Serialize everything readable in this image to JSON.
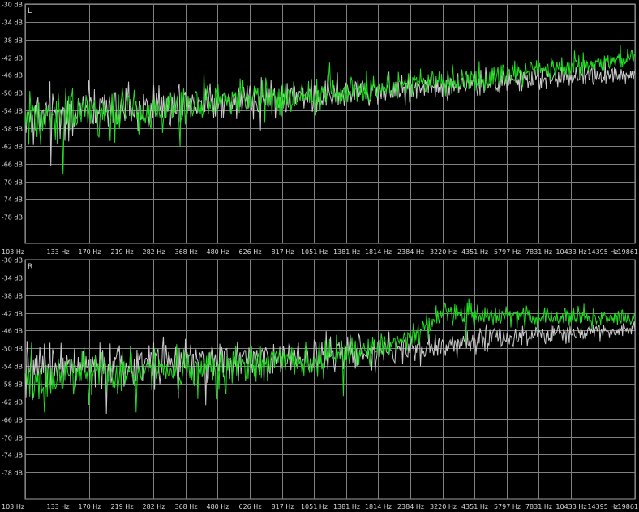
{
  "chart_data": [
    {
      "type": "line",
      "channel_label": "L",
      "y_ticks": [
        "-30 dB",
        "-34 dB",
        "-38 dB",
        "-42 dB",
        "-46 dB",
        "-50 dB",
        "-54 dB",
        "-58 dB",
        "-62 dB",
        "-66 dB",
        "-70 dB",
        "-74 dB",
        "-78 dB"
      ],
      "x_ticks": [
        "103 Hz",
        "133 Hz",
        "170 Hz",
        "219 Hz",
        "282 Hz",
        "368 Hz",
        "480 Hz",
        "626 Hz",
        "817 Hz",
        "1051 Hz",
        "1381 Hz",
        "1814 Hz",
        "2384 Hz",
        "3220 Hz",
        "4351 Hz",
        "5797 Hz",
        "7831 Hz",
        "10433 Hz",
        "14395 Hz",
        "19861"
      ],
      "x_scale": "log",
      "xlim": [
        103,
        19861
      ],
      "ylim": [
        -80,
        -30
      ],
      "grid": true,
      "series": [
        {
          "color": "#c8c8c8",
          "anchors_hz": [
            103,
            170,
            282,
            480,
            817,
            1381,
            2384,
            4351,
            7831,
            14395,
            19861
          ],
          "anchors_db": [
            -55,
            -54,
            -53,
            -52,
            -51,
            -50,
            -49,
            -48,
            -47,
            -46,
            -46
          ]
        },
        {
          "color": "#22dd22",
          "anchors_hz": [
            103,
            170,
            282,
            480,
            817,
            1381,
            2384,
            4351,
            7831,
            14395,
            19861
          ],
          "anchors_db": [
            -56,
            -55,
            -54,
            -52,
            -51,
            -50,
            -48,
            -47,
            -45,
            -43,
            -42
          ]
        }
      ]
    },
    {
      "type": "line",
      "channel_label": "R",
      "y_ticks": [
        "-30 dB",
        "-34 dB",
        "-38 dB",
        "-42 dB",
        "-46 dB",
        "-50 dB",
        "-54 dB",
        "-58 dB",
        "-62 dB",
        "-66 dB",
        "-70 dB",
        "-74 dB",
        "-78 dB"
      ],
      "x_ticks": [
        "103 Hz",
        "133 Hz",
        "170 Hz",
        "219 Hz",
        "282 Hz",
        "368 Hz",
        "480 Hz",
        "626 Hz",
        "817 Hz",
        "1051 Hz",
        "1381 Hz",
        "1814 Hz",
        "2384 Hz",
        "3220 Hz",
        "4351 Hz",
        "5797 Hz",
        "7831 Hz",
        "10433 Hz",
        "14395 Hz",
        "19861"
      ],
      "x_scale": "log",
      "xlim": [
        103,
        19861
      ],
      "ylim": [
        -80,
        -30
      ],
      "grid": true,
      "series": [
        {
          "color": "#c8c8c8",
          "anchors_hz": [
            103,
            170,
            282,
            480,
            817,
            1381,
            2384,
            3220,
            4351,
            7831,
            14395,
            19861
          ],
          "anchors_db": [
            -55,
            -54,
            -53,
            -53,
            -52,
            -51,
            -50,
            -49,
            -48,
            -47,
            -46,
            -46
          ]
        },
        {
          "color": "#22dd22",
          "anchors_hz": [
            103,
            170,
            282,
            480,
            817,
            1381,
            2384,
            3220,
            4351,
            7831,
            14395,
            19861
          ],
          "anchors_db": [
            -57,
            -56,
            -55,
            -54,
            -53,
            -52,
            -48,
            -42,
            -42,
            -43,
            -43,
            -43
          ]
        }
      ]
    }
  ]
}
